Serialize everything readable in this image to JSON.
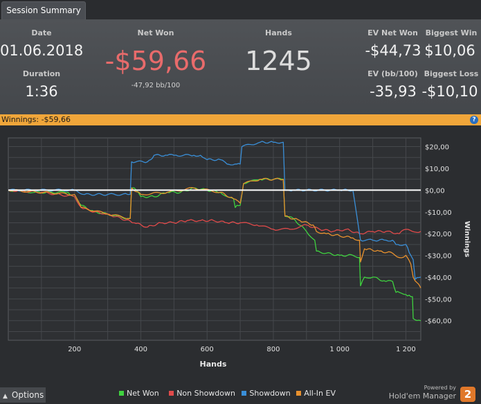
{
  "tab": {
    "label": "Session Summary"
  },
  "summary": {
    "date_label": "Date",
    "date": "01.06.2018",
    "duration_label": "Duration",
    "duration": "1:36",
    "net_won_label": "Net Won",
    "net_won": "-$59,66",
    "bb_per_100": "-47,92 bb/100",
    "hands_label": "Hands",
    "hands": "1245",
    "ev_net_won_label": "EV Net Won",
    "ev_net_won": "-$44,73",
    "biggest_win_label": "Biggest Win",
    "biggest_win": "$10,06",
    "ev_bb_label": "EV (bb/100)",
    "ev_bb": "-35,93",
    "biggest_loss_label": "Biggest Loss",
    "biggest_loss": "-$10,10"
  },
  "winnings_bar": {
    "text": "Winnings:  -$59,66",
    "help": "?"
  },
  "chart_data": {
    "type": "line",
    "xlabel": "Hands",
    "ylabel": "Winnings",
    "xlim": [
      0,
      1245
    ],
    "ylim": [
      -69,
      24
    ],
    "x_ticks": [
      200,
      400,
      600,
      800,
      1000,
      1200
    ],
    "x_tick_labels": [
      "200",
      "400",
      "600",
      "800",
      "1 000",
      "1 200"
    ],
    "y_ticks": [
      20,
      10,
      0,
      -10,
      -20,
      -30,
      -40,
      -50,
      -60
    ],
    "y_tick_labels": [
      "$20,00",
      "$10,00",
      "$0,00",
      "-$10,00",
      "-$20,00",
      "-$30,00",
      "-$40,00",
      "-$50,00",
      "-$60,00"
    ],
    "grid": true,
    "zero_line_color": "#ffffff",
    "series": [
      {
        "name": "Net Won",
        "color": "#3fd23f",
        "points": [
          [
            0,
            0
          ],
          [
            80,
            -1
          ],
          [
            150,
            -1
          ],
          [
            180,
            -1
          ],
          [
            200,
            -3
          ],
          [
            220,
            -7
          ],
          [
            260,
            -10
          ],
          [
            300,
            -11
          ],
          [
            330,
            -12
          ],
          [
            360,
            -13
          ],
          [
            368,
            -13
          ],
          [
            372,
            1
          ],
          [
            380,
            1
          ],
          [
            400,
            -3
          ],
          [
            440,
            -3
          ],
          [
            480,
            -1
          ],
          [
            520,
            -1
          ],
          [
            560,
            1
          ],
          [
            600,
            0
          ],
          [
            640,
            -1
          ],
          [
            660,
            -3
          ],
          [
            680,
            -4
          ],
          [
            685,
            -8
          ],
          [
            690,
            -7
          ],
          [
            700,
            -7
          ],
          [
            710,
            3
          ],
          [
            760,
            5
          ],
          [
            800,
            5
          ],
          [
            830,
            5
          ],
          [
            835,
            -12
          ],
          [
            860,
            -13
          ],
          [
            900,
            -19
          ],
          [
            925,
            -23
          ],
          [
            930,
            -28
          ],
          [
            960,
            -29
          ],
          [
            1000,
            -30
          ],
          [
            1040,
            -30
          ],
          [
            1060,
            -31
          ],
          [
            1063,
            -44
          ],
          [
            1075,
            -40
          ],
          [
            1100,
            -40
          ],
          [
            1140,
            -42
          ],
          [
            1160,
            -42
          ],
          [
            1170,
            -47
          ],
          [
            1180,
            -47
          ],
          [
            1200,
            -48
          ],
          [
            1215,
            -49
          ],
          [
            1220,
            -49
          ],
          [
            1222,
            -59
          ],
          [
            1245,
            -60
          ]
        ]
      },
      {
        "name": "Non Showdown",
        "color": "#e04a4a",
        "points": [
          [
            0,
            0
          ],
          [
            100,
            -1
          ],
          [
            200,
            -3
          ],
          [
            220,
            -8
          ],
          [
            260,
            -10
          ],
          [
            300,
            -11
          ],
          [
            340,
            -13
          ],
          [
            380,
            -15
          ],
          [
            420,
            -17
          ],
          [
            460,
            -15
          ],
          [
            500,
            -15
          ],
          [
            540,
            -14
          ],
          [
            580,
            -14
          ],
          [
            620,
            -14
          ],
          [
            660,
            -15
          ],
          [
            700,
            -15
          ],
          [
            750,
            -16
          ],
          [
            800,
            -18
          ],
          [
            850,
            -18
          ],
          [
            900,
            -16
          ],
          [
            940,
            -18
          ],
          [
            980,
            -19
          ],
          [
            1020,
            -18
          ],
          [
            1060,
            -20
          ],
          [
            1100,
            -19
          ],
          [
            1140,
            -19
          ],
          [
            1180,
            -20
          ],
          [
            1200,
            -18
          ],
          [
            1220,
            -19
          ],
          [
            1245,
            -19
          ]
        ]
      },
      {
        "name": "Showdown",
        "color": "#3a8fd8",
        "points": [
          [
            0,
            0
          ],
          [
            200,
            0
          ],
          [
            230,
            -2
          ],
          [
            300,
            -2
          ],
          [
            360,
            -2
          ],
          [
            368,
            -2
          ],
          [
            372,
            13
          ],
          [
            420,
            13
          ],
          [
            430,
            14
          ],
          [
            440,
            16
          ],
          [
            480,
            16
          ],
          [
            500,
            16
          ],
          [
            560,
            16
          ],
          [
            580,
            16
          ],
          [
            600,
            14
          ],
          [
            640,
            14
          ],
          [
            660,
            12
          ],
          [
            690,
            12
          ],
          [
            700,
            12
          ],
          [
            705,
            20
          ],
          [
            760,
            22
          ],
          [
            800,
            22
          ],
          [
            830,
            22
          ],
          [
            835,
            0
          ],
          [
            860,
            0
          ],
          [
            900,
            0
          ],
          [
            1000,
            0
          ],
          [
            1040,
            0
          ],
          [
            1060,
            -20
          ],
          [
            1063,
            -23
          ],
          [
            1100,
            -23
          ],
          [
            1140,
            -23
          ],
          [
            1160,
            -23
          ],
          [
            1170,
            -25
          ],
          [
            1200,
            -25
          ],
          [
            1215,
            -30
          ],
          [
            1222,
            -32
          ],
          [
            1228,
            -41
          ],
          [
            1245,
            -40
          ]
        ]
      },
      {
        "name": "All-In EV",
        "color": "#e8912e",
        "points": [
          [
            0,
            0
          ],
          [
            200,
            -2
          ],
          [
            220,
            -8
          ],
          [
            300,
            -11
          ],
          [
            368,
            -13
          ],
          [
            372,
            1
          ],
          [
            400,
            -2
          ],
          [
            480,
            -1
          ],
          [
            560,
            1
          ],
          [
            640,
            -1
          ],
          [
            680,
            -4
          ],
          [
            700,
            -6
          ],
          [
            710,
            3
          ],
          [
            760,
            5
          ],
          [
            830,
            5
          ],
          [
            835,
            -12
          ],
          [
            880,
            -14
          ],
          [
            920,
            -16
          ],
          [
            930,
            -19
          ],
          [
            960,
            -20
          ],
          [
            1000,
            -21
          ],
          [
            1040,
            -22
          ],
          [
            1060,
            -23
          ],
          [
            1063,
            -33
          ],
          [
            1075,
            -27
          ],
          [
            1120,
            -28
          ],
          [
            1160,
            -29
          ],
          [
            1180,
            -31
          ],
          [
            1200,
            -30
          ],
          [
            1215,
            -34
          ],
          [
            1222,
            -40
          ],
          [
            1245,
            -45
          ]
        ]
      }
    ]
  },
  "footer": {
    "options_label": "Options",
    "powered_by": "Powered by",
    "brand_name": "Hold'em Manager",
    "logo_text": "2"
  }
}
